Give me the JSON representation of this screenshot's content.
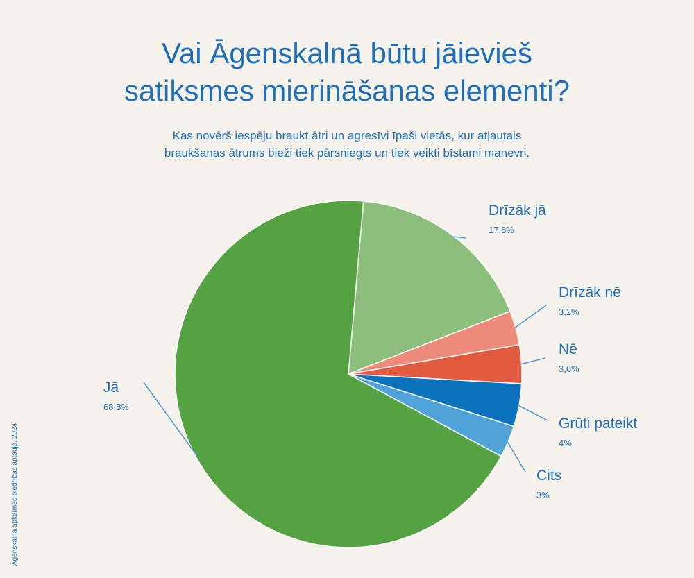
{
  "chart_data": {
    "type": "pie",
    "title_lines": [
      "Vai Āgenskalnā būtu jāievieš",
      "satiksmes mierināšanas elementi?"
    ],
    "subtitle_lines": [
      "Kas novērš iespēju braukt ātri un agresīvi īpaši vietās, kur atļautais",
      "braukšanas ātrums bieži tiek pārsniegts un tiek veikti bīstami manevri."
    ],
    "source": "Āgenskalna apkaimes biedrības aptauja, 2024",
    "slices": [
      {
        "name": "Drīzāk jā",
        "value": 17.8,
        "value_label": "17,8%",
        "color": "#8bbf7b"
      },
      {
        "name": "Drīzāk nē",
        "value": 3.2,
        "value_label": "3,2%",
        "color": "#ee8c7b"
      },
      {
        "name": "Nē",
        "value": 3.6,
        "value_label": "3,6%",
        "color": "#e25a40"
      },
      {
        "name": "Grūti pateikt",
        "value": 4,
        "value_label": "4%",
        "color": "#0d72bd"
      },
      {
        "name": "Cits",
        "value": 3,
        "value_label": "3%",
        "color": "#4fa3d9"
      },
      {
        "name": "Jā",
        "value": 68.8,
        "value_label": "68,8%",
        "color": "#55a243"
      }
    ]
  }
}
